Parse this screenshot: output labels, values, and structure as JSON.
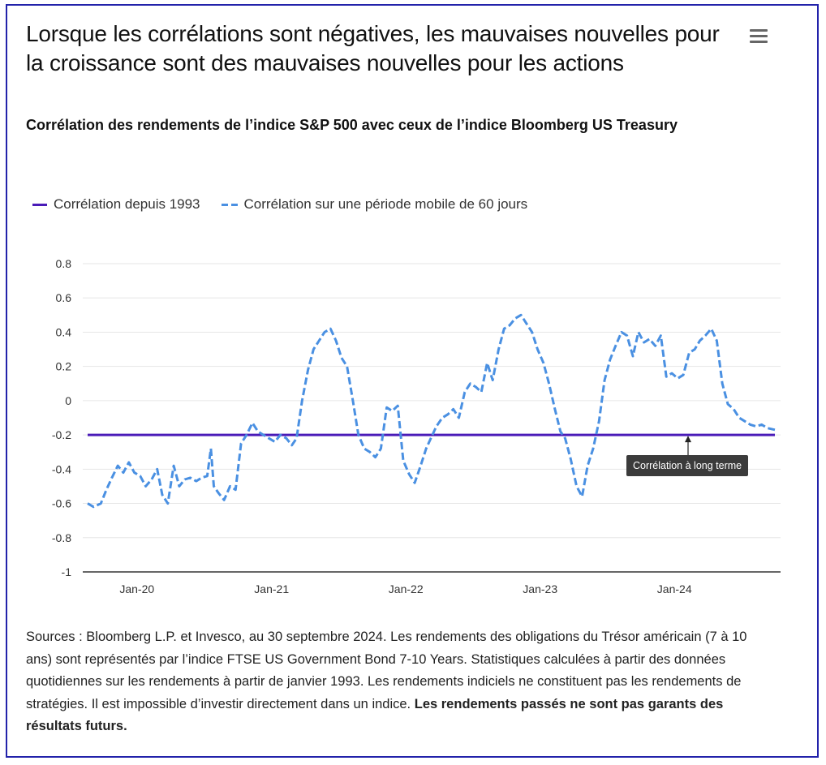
{
  "header": {
    "title": "Lorsque les corrélations sont négatives, les mauvaises nouvelles pour la croissance sont des mauvaises nouvelles pour les actions",
    "subtitle": "Corrélation des rendements de l’indice S&P 500 avec ceux de l’indice Bloomberg US Treasury",
    "menu_icon": "hamburger-icon"
  },
  "legend": {
    "long_term": "Corrélation depuis 1993",
    "rolling": "Corrélation sur une période mobile de 60 jours"
  },
  "annotation": {
    "label": "Corrélation à long terme"
  },
  "footer": {
    "text": "Sources : Bloomberg L.P. et Invesco, au 30 septembre 2024. Les rendements des obligations du Trésor américain (7 à 10 ans) sont représentés par l’indice FTSE US Government Bond 7-10 Years. Statistiques calculées à partir des données quotidiennes sur les rendements à partir de janvier 1993. Les rendements indiciels ne constituent pas les rendements de stratégies. Il est impossible d’investir directement dans un indice.",
    "bold": "Les rendements passés ne sont pas garants des résultats futurs."
  },
  "chart_data": {
    "type": "line",
    "title": "Lorsque les corrélations sont négatives, les mauvaises nouvelles pour la croissance sont des mauvaises nouvelles pour les actions",
    "subtitle": "Corrélation des rendements de l’indice S&P 500 avec ceux de l’indice Bloomberg US Treasury",
    "xlabel": "",
    "ylabel": "",
    "ylim": [
      -1,
      0.8
    ],
    "yticks": [
      0.8,
      0.6,
      0.4,
      0.2,
      0,
      -0.2,
      -0.4,
      -0.6,
      -0.8,
      -1
    ],
    "ytick_labels": [
      "0.8",
      "0.6",
      "0.4",
      "0.2",
      "0",
      "-0.2",
      "-0.4",
      "-0.6",
      "-0.8",
      "-1"
    ],
    "xlim": [
      "2019-08-20",
      "2024-09-30"
    ],
    "xticks": [
      "2020-01-01",
      "2021-01-01",
      "2022-01-01",
      "2023-01-01",
      "2024-01-01"
    ],
    "xtick_labels": [
      "Jan-20",
      "Jan-21",
      "Jan-22",
      "Jan-23",
      "Jan-24"
    ],
    "grid": true,
    "legend_position": "top-left",
    "colors": {
      "long_term": "#4a1bb8",
      "rolling": "#4a90e2",
      "grid": "#e6e6e6",
      "axis": "#333333"
    },
    "series": [
      {
        "name": "Corrélation depuis 1993",
        "style": "solid",
        "x": [
          "2019-08-20",
          "2024-09-30"
        ],
        "values": [
          -0.2,
          -0.2
        ]
      },
      {
        "name": "Corrélation sur une période mobile de 60 jours",
        "style": "dashed",
        "x": [
          "2019-08-20",
          "2019-09-05",
          "2019-09-25",
          "2019-10-10",
          "2019-10-25",
          "2019-11-10",
          "2019-11-25",
          "2019-12-10",
          "2019-12-25",
          "2020-01-10",
          "2020-01-25",
          "2020-02-10",
          "2020-02-25",
          "2020-03-10",
          "2020-03-25",
          "2020-04-10",
          "2020-04-25",
          "2020-05-10",
          "2020-05-25",
          "2020-06-10",
          "2020-06-25",
          "2020-07-10",
          "2020-07-20",
          "2020-07-28",
          "2020-08-10",
          "2020-08-25",
          "2020-09-10",
          "2020-09-25",
          "2020-10-10",
          "2020-10-25",
          "2020-11-10",
          "2020-11-25",
          "2020-12-10",
          "2020-12-25",
          "2021-01-10",
          "2021-01-25",
          "2021-02-10",
          "2021-02-25",
          "2021-03-10",
          "2021-03-25",
          "2021-04-10",
          "2021-04-25",
          "2021-05-10",
          "2021-05-25",
          "2021-06-10",
          "2021-06-25",
          "2021-07-10",
          "2021-07-25",
          "2021-08-10",
          "2021-08-25",
          "2021-09-10",
          "2021-09-25",
          "2021-10-10",
          "2021-10-25",
          "2021-11-10",
          "2021-11-25",
          "2021-12-10",
          "2021-12-25",
          "2022-01-10",
          "2022-01-25",
          "2022-02-10",
          "2022-02-25",
          "2022-03-10",
          "2022-03-25",
          "2022-04-10",
          "2022-04-25",
          "2022-05-10",
          "2022-05-25",
          "2022-06-10",
          "2022-06-25",
          "2022-07-10",
          "2022-07-25",
          "2022-08-10",
          "2022-08-25",
          "2022-09-10",
          "2022-09-25",
          "2022-10-10",
          "2022-10-25",
          "2022-11-10",
          "2022-11-25",
          "2022-12-10",
          "2022-12-25",
          "2023-01-10",
          "2023-01-25",
          "2023-02-10",
          "2023-02-25",
          "2023-03-10",
          "2023-03-25",
          "2023-04-10",
          "2023-04-25",
          "2023-05-10",
          "2023-05-25",
          "2023-06-10",
          "2023-06-25",
          "2023-07-10",
          "2023-07-25",
          "2023-08-10",
          "2023-08-25",
          "2023-09-10",
          "2023-09-25",
          "2023-10-10",
          "2023-10-25",
          "2023-11-10",
          "2023-11-25",
          "2023-12-10",
          "2023-12-25",
          "2024-01-10",
          "2024-01-25",
          "2024-02-10",
          "2024-02-25",
          "2024-03-10",
          "2024-03-25",
          "2024-04-10",
          "2024-04-25",
          "2024-05-10",
          "2024-05-25",
          "2024-06-10",
          "2024-06-25",
          "2024-07-10",
          "2024-07-25",
          "2024-08-10",
          "2024-08-25",
          "2024-09-10",
          "2024-09-30"
        ],
        "values": [
          -0.6,
          -0.62,
          -0.6,
          -0.52,
          -0.45,
          -0.38,
          -0.42,
          -0.36,
          -0.42,
          -0.44,
          -0.5,
          -0.46,
          -0.4,
          -0.55,
          -0.6,
          -0.38,
          -0.5,
          -0.46,
          -0.45,
          -0.47,
          -0.45,
          -0.44,
          -0.28,
          -0.5,
          -0.54,
          -0.58,
          -0.5,
          -0.52,
          -0.25,
          -0.2,
          -0.13,
          -0.18,
          -0.2,
          -0.22,
          -0.24,
          -0.2,
          -0.22,
          -0.26,
          -0.22,
          0.0,
          0.18,
          0.3,
          0.35,
          0.4,
          0.42,
          0.35,
          0.25,
          0.2,
          0.0,
          -0.2,
          -0.28,
          -0.3,
          -0.33,
          -0.28,
          -0.04,
          -0.06,
          -0.03,
          -0.35,
          -0.43,
          -0.48,
          -0.38,
          -0.28,
          -0.22,
          -0.15,
          -0.1,
          -0.08,
          -0.05,
          -0.1,
          0.05,
          0.1,
          0.08,
          0.05,
          0.22,
          0.12,
          0.3,
          0.42,
          0.44,
          0.48,
          0.5,
          0.45,
          0.4,
          0.3,
          0.22,
          0.1,
          -0.05,
          -0.18,
          -0.22,
          -0.34,
          -0.5,
          -0.56,
          -0.38,
          -0.28,
          -0.12,
          0.12,
          0.24,
          0.32,
          0.4,
          0.38,
          0.26,
          0.4,
          0.34,
          0.36,
          0.32,
          0.38,
          0.14,
          0.16,
          0.13,
          0.15,
          0.28,
          0.3,
          0.35,
          0.38,
          0.42,
          0.35,
          0.1,
          -0.02,
          -0.05,
          -0.1,
          -0.12,
          -0.14,
          -0.15,
          -0.14,
          -0.16,
          -0.17
        ]
      }
    ]
  }
}
